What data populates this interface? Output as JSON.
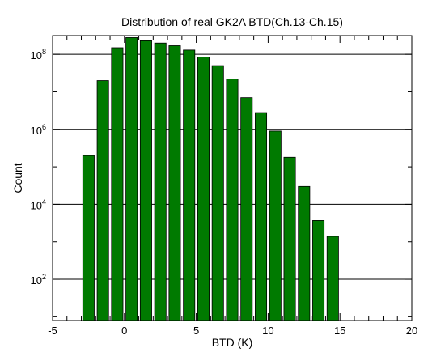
{
  "chart_data": {
    "type": "bar",
    "title": "Distribution of real GK2A BTD(Ch.13-Ch.15)",
    "xlabel": "BTD (K)",
    "ylabel": "Count",
    "xlim": [
      -5,
      20
    ],
    "ylim_log10": [
      0.9,
      8.5
    ],
    "yscale": "log",
    "grid": "horizontal at decades",
    "bar_width": 0.8,
    "x_ticks": [
      {
        "value": -5,
        "label": "-5"
      },
      {
        "value": 0,
        "label": "0"
      },
      {
        "value": 5,
        "label": "5"
      },
      {
        "value": 10,
        "label": "10"
      },
      {
        "value": 15,
        "label": "15"
      },
      {
        "value": 20,
        "label": "20"
      }
    ],
    "y_ticks": [
      {
        "exp": 2,
        "base": "10",
        "sup": "2"
      },
      {
        "exp": 4,
        "base": "10",
        "sup": "4"
      },
      {
        "exp": 6,
        "base": "10",
        "sup": "6"
      },
      {
        "exp": 8,
        "base": "10",
        "sup": "8"
      }
    ],
    "bars": [
      {
        "x": -2.5,
        "value": 200000
      },
      {
        "x": -1.5,
        "value": 20000000
      },
      {
        "x": -0.5,
        "value": 150000000
      },
      {
        "x": 0.5,
        "value": 280000000
      },
      {
        "x": 1.5,
        "value": 230000000
      },
      {
        "x": 2.5,
        "value": 200000000
      },
      {
        "x": 3.5,
        "value": 170000000
      },
      {
        "x": 4.5,
        "value": 130000000
      },
      {
        "x": 5.5,
        "value": 85000000
      },
      {
        "x": 6.5,
        "value": 50000000
      },
      {
        "x": 7.5,
        "value": 22000000
      },
      {
        "x": 8.5,
        "value": 7000000
      },
      {
        "x": 9.5,
        "value": 2800000
      },
      {
        "x": 10.5,
        "value": 900000
      },
      {
        "x": 11.5,
        "value": 180000
      },
      {
        "x": 12.5,
        "value": 30000
      },
      {
        "x": 13.5,
        "value": 3700
      },
      {
        "x": 14.5,
        "value": 1400
      }
    ],
    "bar_color": "#007a00",
    "bar_edge_color": "#000000"
  }
}
